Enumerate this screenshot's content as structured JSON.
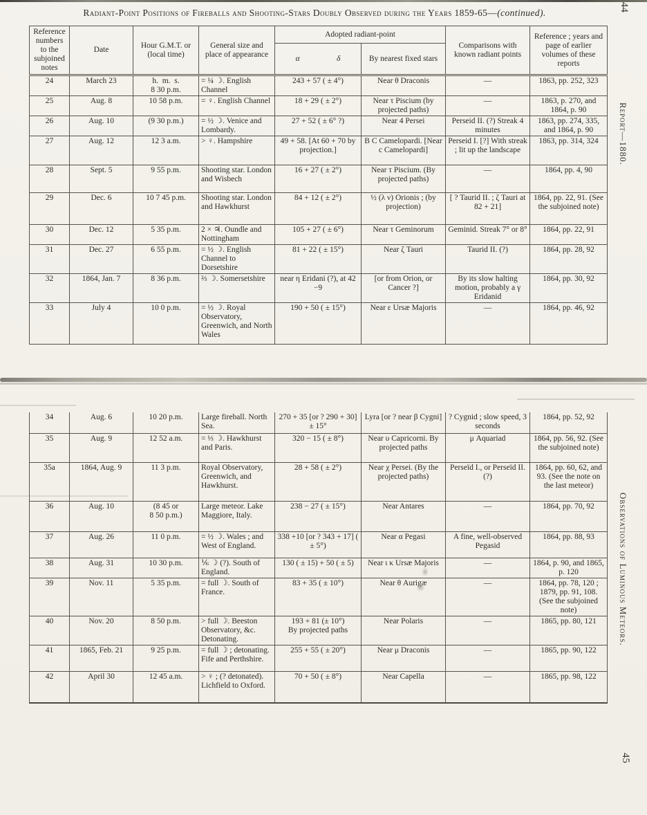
{
  "page": {
    "title_main": "Radiant-Point Positions of Fireballs and Shooting-Stars Doubly Observed during the Years 1859-65—",
    "title_suffix": "(continued).",
    "page_number_top": "44",
    "page_number_bottom": "45",
    "running_head_top": "Report—1880.",
    "running_head_bottom": "Observations of Luminous Meteors."
  },
  "table": {
    "headers": {
      "ref": "Reference numbers to the subjoined notes",
      "date": "Date",
      "hour": "Hour G.M.T. or (local time)",
      "size": "General size and place of appearance",
      "radiant_group": "Adopted radiant-point",
      "alpha": "α",
      "delta": "δ",
      "stars": "By nearest fixed stars",
      "comparisons": "Comparisons with known radiant points",
      "reference": "Reference ; years and page of earlier volumes of these reports"
    },
    "upper_rows": [
      {
        "ref": "24",
        "date": "March 23",
        "hour": [
          "h.  m.  s.",
          "8 30 p.m."
        ],
        "size": "= ¼ ☽.  English Channel",
        "radiant": "243 + 57 ( ± 4°)",
        "stars": "Near θ Draconis",
        "comparisons": "—",
        "reference": "1863, pp. 252, 323"
      },
      {
        "ref": "25",
        "date": "Aug. 8",
        "hour": "10 58 p.m.",
        "size": "= ♀.  English Channel",
        "radiant": "18 + 29 ( ± 2°)",
        "stars": "Near τ Piscium (by projected paths)",
        "comparisons": "—",
        "reference": "1863, p. 270, and 1864, p. 90"
      },
      {
        "ref": "26",
        "date": "Aug. 10",
        "hour": "(9 30 p.m.)",
        "size": "= ½ ☽.  Venice and Lombardy.",
        "radiant": "27 + 52 ( ± 6° ?)",
        "stars": "Near 4 Persei",
        "comparisons": "Perseid II. (?) Streak 4 minutes",
        "reference": "1863, pp. 274, 335, and 1864, p. 90"
      },
      {
        "ref": "27",
        "date": "Aug. 12",
        "hour": "12 3 a.m.",
        "size": "> ♀. Hampshire",
        "radiant": "49 + 58.  [At 60 + 70 by projection.]",
        "stars": "B C Camelopardi. [Near c Camelopardi]",
        "comparisons": "Perseid I. [?] With streak ; lit up the landscape",
        "reference": "1863, pp. 314, 324"
      },
      {
        "ref": "28",
        "date": "Sept. 5",
        "hour": "9 55 p.m.",
        "size": "Shooting star. London and Wisbech",
        "radiant": "16 + 27 ( ± 2°)",
        "stars": "Near τ Piscium. (By projected paths)",
        "comparisons": "—",
        "reference": "1864, pp. 4, 90"
      },
      {
        "ref": "29",
        "date": "Dec. 6",
        "hour": "10 7 45 p.m.",
        "size": "Shooting star. London and Hawkhurst",
        "radiant": "84 + 12 ( ± 2°)",
        "stars": "½ (λ ν) Orionis ; (by projection)",
        "comparisons": "[ ? Taurid II. ; ζ Tauri at 82 + 21]",
        "reference": "1864, pp. 22, 91. (See the subjoined note)"
      },
      {
        "ref": "30",
        "date": "Dec. 12",
        "hour": "5 35 p.m.",
        "size": "2 × ♃.  Oundle and Nottingham",
        "radiant": "105 + 27 ( ± 6°)",
        "stars": "Near τ Geminorum",
        "comparisons": "Geminid.  Streak 7° or 8°",
        "reference": "1864, pp. 22, 91"
      },
      {
        "ref": "31",
        "date": "Dec. 27",
        "hour": "6 55 p.m.",
        "size": "= ½ ☽.  English Channel to Dorsetshire",
        "radiant": "81 + 22 ( ± 15°)",
        "stars": "Near ζ Tauri",
        "comparisons": "Taurid II. (?)",
        "reference": "1864, pp. 28, 92"
      },
      {
        "ref": "32",
        "date": "1864, Jan. 7",
        "hour": "8 36 p.m.",
        "size": "⅔ ☽.  Somersetshire",
        "radiant": "near η Eridani (?), at 42  −9",
        "stars": "[or from Orion, or Cancer ?]",
        "comparisons": "By its slow halting motion, probably a γ Eridanid",
        "reference": "1864, pp. 30, 92"
      },
      {
        "ref": "33",
        "date": "July 4",
        "hour": "10 0 p.m.",
        "size": "= ½ ☽. Royal Observatory, Greenwich, and North Wales",
        "radiant": "190 + 50 ( ± 15°)",
        "stars": "Near ε Ursæ Majoris",
        "comparisons": "—",
        "reference": "1864, pp. 46, 92"
      }
    ],
    "lower_rows": [
      {
        "ref": "34",
        "date": "Aug. 6",
        "hour": "10 20 p.m.",
        "size": "Large fireball. North Sea.",
        "radiant": "270 + 35 [or ? 290 + 30] ± 15°",
        "stars": "Lyra [or ? near β Cygni]",
        "comparisons": "? Cygnid ;  slow speed, 3 seconds",
        "reference": "1864, pp. 52, 92"
      },
      {
        "ref": "35",
        "date": "Aug. 9",
        "hour": "12 52 a.m.",
        "size": "= ⅓ ☽.  Hawkhurst and Paris.",
        "radiant": "320 − 15 ( ± 8°)",
        "stars": "Near υ Capricorni. By projected paths",
        "comparisons": "μ Aquariad",
        "reference": "1864, pp. 56, 92. (See the subjoined note)"
      },
      {
        "ref": "35a",
        "date": "1864, Aug. 9",
        "hour": "11 3 p.m.",
        "size": "Royal Observatory, Greenwich, and Hawkhurst.",
        "radiant": "28 + 58 ( ± 2°)",
        "stars": "Near χ Persei. (By the projected paths)",
        "comparisons": "Perseïd I., or Perseïd II. (?)",
        "reference": "1864, pp. 60, 62, and 93.  (See the note on the last meteor)"
      },
      {
        "ref": "36",
        "date": "Aug. 10",
        "hour": [
          "(8 45 or",
          "8 50 p.m.)"
        ],
        "size": "Large meteor. Lake Maggiore, Italy.",
        "radiant": "238 − 27 ( ± 15°)",
        "stars": "Near Antares",
        "comparisons": "—",
        "reference": "1864, pp. 70, 92"
      },
      {
        "ref": "37",
        "date": "Aug. 26",
        "hour": "11 0 p.m.",
        "size": "= ½ ☽.  Wales ; and West of England.",
        "radiant": "338 +10 [or ? 343 + 17] ( ± 5°)",
        "stars": "Near α Pegasi",
        "comparisons": "A fine, well-observed Pegasid",
        "reference": "1864, pp. 88, 93"
      },
      {
        "ref": "38",
        "date": "Aug. 31",
        "hour": "10 30 p.m.",
        "size": "⅙ ☽ (?). South of England.",
        "radiant": "130 ( ± 15) + 50 ( ± 5)",
        "stars": "Near ι κ Ursæ Majoris",
        "comparisons": "—",
        "reference": "1864, p. 90, and 1865, p. 120"
      },
      {
        "ref": "39",
        "date": "Nov. 11",
        "hour": "5 35 p.m.",
        "size": "= full ☽.  South of France.",
        "radiant": "83 + 35 ( ± 10°)",
        "stars": "Near θ Aurigæ",
        "comparisons": "—",
        "reference": "1864, pp. 78, 120 ; 1879, pp. 91, 108. (See the subjoined note)"
      },
      {
        "ref": "40",
        "date": "Nov. 20",
        "hour": "8 50 p.m.",
        "size": "> full ☽. Beeston Observatory, &c. Detonating.",
        "radiant": [
          "193 + 81 (± 10°)",
          "By projected paths"
        ],
        "stars": "Near Polaris",
        "comparisons": "—",
        "reference": "1865, pp. 80, 121"
      },
      {
        "ref": "41",
        "date": "1865, Feb. 21",
        "hour": "9 25 p.m.",
        "size": "= full ☽ ; detonating.  Fife and Perthshire.",
        "radiant": "255 + 55 ( ± 20°)",
        "stars": "Near μ Draconis",
        "comparisons": "—",
        "reference": "1865, pp. 90, 122"
      },
      {
        "ref": "42",
        "date": "April 30",
        "hour": "12 45 a.m.",
        "size": "> ♀ ; (? detonated).  Lichfield to Oxford.",
        "radiant": "70 + 50 ( ± 8°)",
        "stars": "Near Capella",
        "comparisons": "—",
        "reference": "1865, pp. 98, 122"
      }
    ]
  }
}
